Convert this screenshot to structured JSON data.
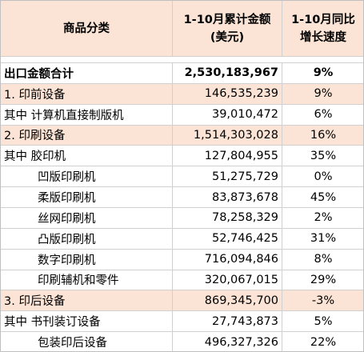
{
  "table": {
    "header": [
      [
        "商品分类"
      ],
      [
        "1-10月累计金额",
        "(美元)"
      ],
      [
        "1-10月同比",
        "增长速度"
      ]
    ],
    "rows": [
      {
        "cells": [
          "出口金额合计",
          "2,530,183,967",
          "9%"
        ],
        "style": "bold"
      },
      {
        "cells": [
          "1.  印前设备",
          "146,535,239",
          "9%"
        ],
        "style": "shaded"
      },
      {
        "cells": [
          "其中 计算机直接制版机",
          "39,010,472",
          "6%"
        ],
        "style": "plain"
      },
      {
        "cells": [
          "2.  印刷设备",
          "1,514,303,028",
          "16%"
        ],
        "style": "shaded"
      },
      {
        "cells": [
          "其中 胶印机",
          "127,804,955",
          "35%"
        ],
        "style": "plain"
      },
      {
        "cells": [
          "凹版印刷机",
          "51,275,729",
          "0%"
        ],
        "style": "indent"
      },
      {
        "cells": [
          "柔版印刷机",
          "83,873,678",
          "45%"
        ],
        "style": "indent"
      },
      {
        "cells": [
          "丝网印刷机",
          "78,258,329",
          "2%"
        ],
        "style": "indent"
      },
      {
        "cells": [
          "凸版印刷机",
          "52,746,425",
          "31%"
        ],
        "style": "indent"
      },
      {
        "cells": [
          "数字印刷机",
          "716,094,846",
          "8%"
        ],
        "style": "indent"
      },
      {
        "cells": [
          "印刷辅机和零件",
          "320,067,015",
          "29%"
        ],
        "style": "indent"
      },
      {
        "cells": [
          "3. 印后设备",
          "869,345,700",
          "-3%"
        ],
        "style": "shaded"
      },
      {
        "cells": [
          "其中 书刊装订设备",
          "27,743,873",
          "5%"
        ],
        "style": "plain"
      },
      {
        "cells": [
          "包装印后设备",
          "496,327,326",
          "22%"
        ],
        "style": "indent"
      }
    ]
  }
}
